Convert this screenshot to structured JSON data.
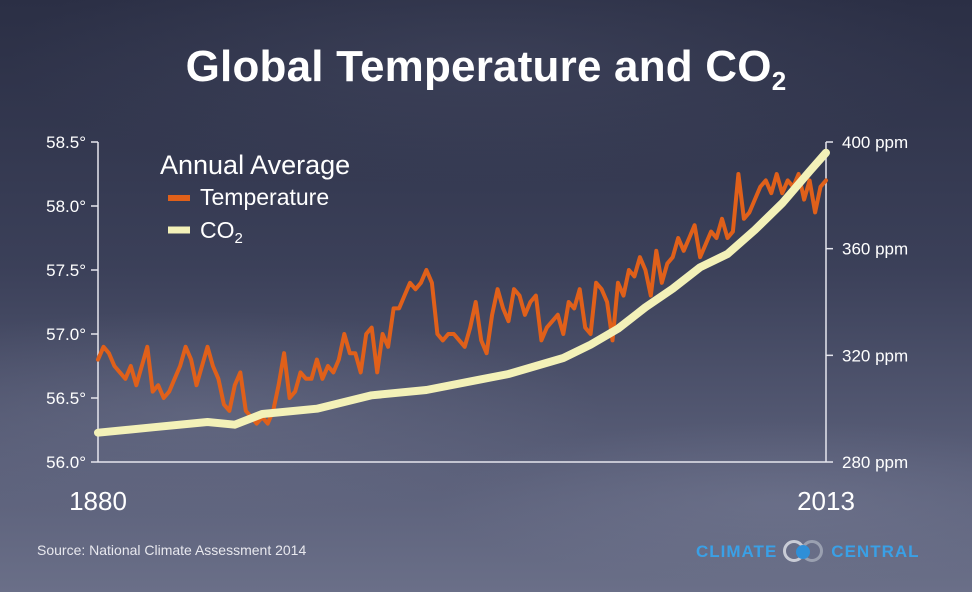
{
  "title": {
    "main": "Global Temperature and CO",
    "subscript": "2"
  },
  "legend": {
    "heading": "Annual Average",
    "temperature_label": "Temperature",
    "co2_label_main": "CO",
    "co2_label_sub": "2",
    "placement": "top-left"
  },
  "source": "Source: National Climate Assessment 2014",
  "logo": {
    "left_word": "CLIMATE",
    "right_word": "CENTRAL"
  },
  "colors": {
    "temperature": "#e0601a",
    "co2": "#f3f1b8",
    "axis": "#e6e6ee",
    "text": "#ffffff",
    "logo_blue": "#3aa0e6"
  },
  "chart_data": {
    "type": "line",
    "grid": false,
    "xlim": [
      1880,
      2013
    ],
    "x_tick_labels": [
      "1880",
      "2013"
    ],
    "y_left": {
      "label": "",
      "lim": [
        56.0,
        58.5
      ],
      "ticks": [
        "56.0°",
        "56.5°",
        "57.0°",
        "57.5°",
        "58.0°",
        "58.5°"
      ]
    },
    "y_right": {
      "label": "",
      "lim": [
        280,
        400
      ],
      "ticks": [
        "280 ppm",
        "320 ppm",
        "360 ppm",
        "400 ppm"
      ]
    },
    "series": [
      {
        "name": "Temperature",
        "axis": "left",
        "x": [
          1880,
          1881,
          1882,
          1883,
          1884,
          1885,
          1886,
          1887,
          1888,
          1889,
          1890,
          1891,
          1892,
          1893,
          1894,
          1895,
          1896,
          1897,
          1898,
          1899,
          1900,
          1901,
          1902,
          1903,
          1904,
          1905,
          1906,
          1907,
          1908,
          1909,
          1910,
          1911,
          1912,
          1913,
          1914,
          1915,
          1916,
          1917,
          1918,
          1919,
          1920,
          1921,
          1922,
          1923,
          1924,
          1925,
          1926,
          1927,
          1928,
          1929,
          1930,
          1931,
          1932,
          1933,
          1934,
          1935,
          1936,
          1937,
          1938,
          1939,
          1940,
          1941,
          1942,
          1943,
          1944,
          1945,
          1946,
          1947,
          1948,
          1949,
          1950,
          1951,
          1952,
          1953,
          1954,
          1955,
          1956,
          1957,
          1958,
          1959,
          1960,
          1961,
          1962,
          1963,
          1964,
          1965,
          1966,
          1967,
          1968,
          1969,
          1970,
          1971,
          1972,
          1973,
          1974,
          1975,
          1976,
          1977,
          1978,
          1979,
          1980,
          1981,
          1982,
          1983,
          1984,
          1985,
          1986,
          1987,
          1988,
          1989,
          1990,
          1991,
          1992,
          1993,
          1994,
          1995,
          1996,
          1997,
          1998,
          1999,
          2000,
          2001,
          2002,
          2003,
          2004,
          2005,
          2006,
          2007,
          2008,
          2009,
          2010,
          2011,
          2012,
          2013
        ],
        "values": [
          56.8,
          56.9,
          56.85,
          56.75,
          56.7,
          56.65,
          56.75,
          56.6,
          56.75,
          56.9,
          56.55,
          56.6,
          56.5,
          56.55,
          56.65,
          56.75,
          56.9,
          56.8,
          56.6,
          56.75,
          56.9,
          56.75,
          56.65,
          56.45,
          56.4,
          56.6,
          56.7,
          56.4,
          56.35,
          56.3,
          56.35,
          56.3,
          56.4,
          56.6,
          56.85,
          56.5,
          56.55,
          56.7,
          56.65,
          56.65,
          56.8,
          56.65,
          56.75,
          56.7,
          56.8,
          57.0,
          56.85,
          56.85,
          56.7,
          57.0,
          57.05,
          56.7,
          57.0,
          56.9,
          57.2,
          57.2,
          57.3,
          57.4,
          57.35,
          57.4,
          57.5,
          57.4,
          57.0,
          56.95,
          57.0,
          57.0,
          56.95,
          56.9,
          57.05,
          57.25,
          56.95,
          56.85,
          57.15,
          57.35,
          57.2,
          57.1,
          57.35,
          57.3,
          57.15,
          57.25,
          57.3,
          56.95,
          57.05,
          57.1,
          57.15,
          57.0,
          57.25,
          57.2,
          57.35,
          57.05,
          57.0,
          57.4,
          57.35,
          57.25,
          56.95,
          57.4,
          57.3,
          57.5,
          57.45,
          57.6,
          57.5,
          57.3,
          57.65,
          57.4,
          57.55,
          57.6,
          57.75,
          57.65,
          57.75,
          57.85,
          57.6,
          57.7,
          57.8,
          57.75,
          57.9,
          57.75,
          57.8,
          58.25,
          57.9,
          57.95,
          58.05,
          58.15,
          58.2,
          58.1,
          58.25,
          58.1,
          58.2,
          58.15,
          58.25,
          58.05,
          58.2,
          57.95,
          58.15,
          58.2
        ]
      },
      {
        "name": "CO2",
        "axis": "right",
        "x": [
          1880,
          1890,
          1900,
          1905,
          1910,
          1920,
          1930,
          1940,
          1950,
          1955,
          1960,
          1965,
          1970,
          1975,
          1980,
          1985,
          1990,
          1995,
          2000,
          2005,
          2010,
          2013
        ],
        "values": [
          291,
          293,
          295,
          294,
          298,
          300,
          305,
          307,
          311,
          313,
          316,
          319,
          324,
          330,
          338,
          345,
          353,
          358,
          367,
          377,
          389,
          396
        ]
      }
    ]
  }
}
